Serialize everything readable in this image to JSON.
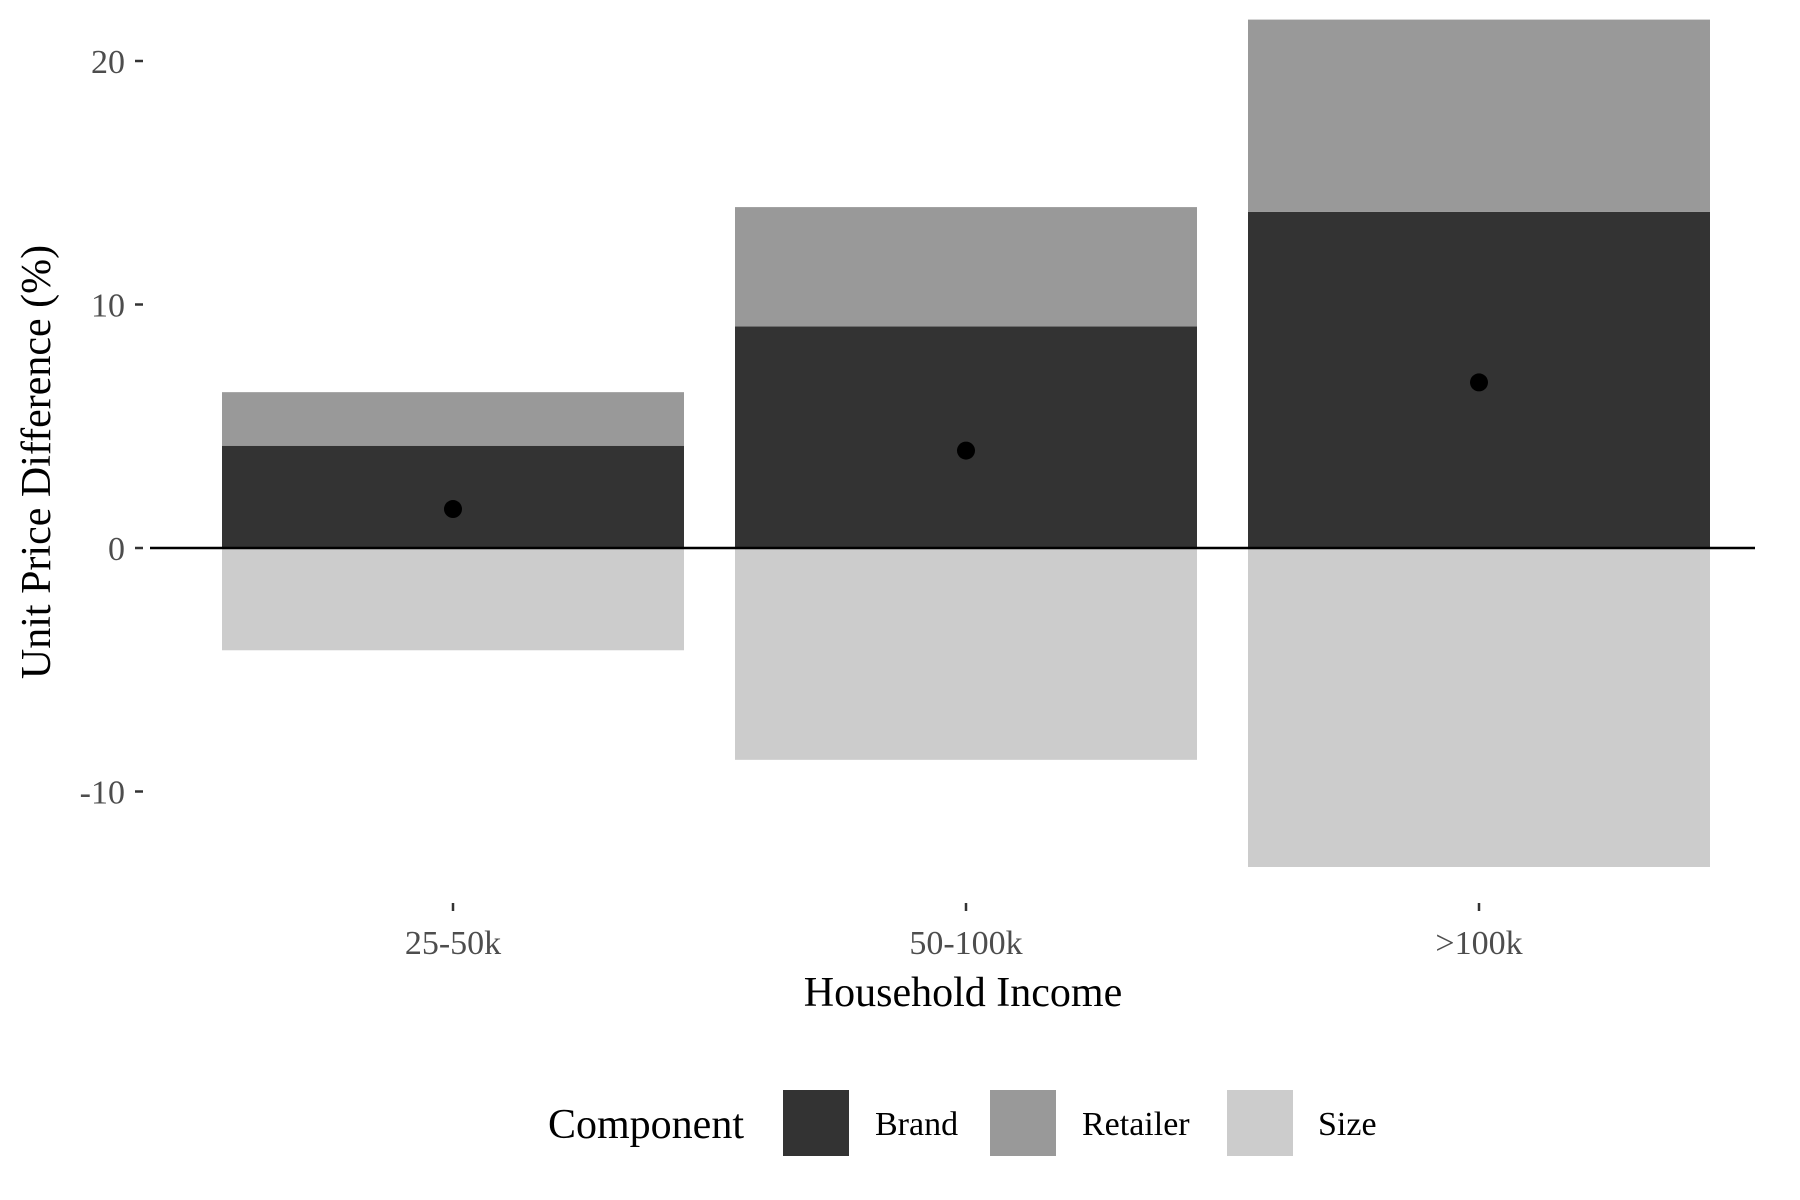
{
  "chart_data": {
    "type": "bar",
    "stacked": true,
    "categories": [
      "25-50k",
      "50-100k",
      ">100k"
    ],
    "series": [
      {
        "name": "Brand",
        "values": [
          4.2,
          9.1,
          13.8
        ],
        "color": "#333333"
      },
      {
        "name": "Retailer",
        "values": [
          2.2,
          4.9,
          7.9
        ],
        "color": "#999999"
      },
      {
        "name": "Size",
        "values": [
          -4.2,
          -8.7,
          -13.1
        ],
        "color": "#cccccc"
      }
    ],
    "points": {
      "values": [
        1.6,
        4.0,
        6.8
      ],
      "color": "#000000"
    },
    "xlabel": "Household Income",
    "ylabel": "Unit Price Difference (%)",
    "ylim": [
      -14.2,
      20.5
    ],
    "yticks": [
      -10,
      0,
      10,
      20
    ],
    "ytick_labels": [
      "-10",
      "0",
      "10",
      "20"
    ],
    "reference_line_y": 0,
    "grid": false,
    "legend": {
      "title": "Component",
      "position": "bottom"
    }
  }
}
